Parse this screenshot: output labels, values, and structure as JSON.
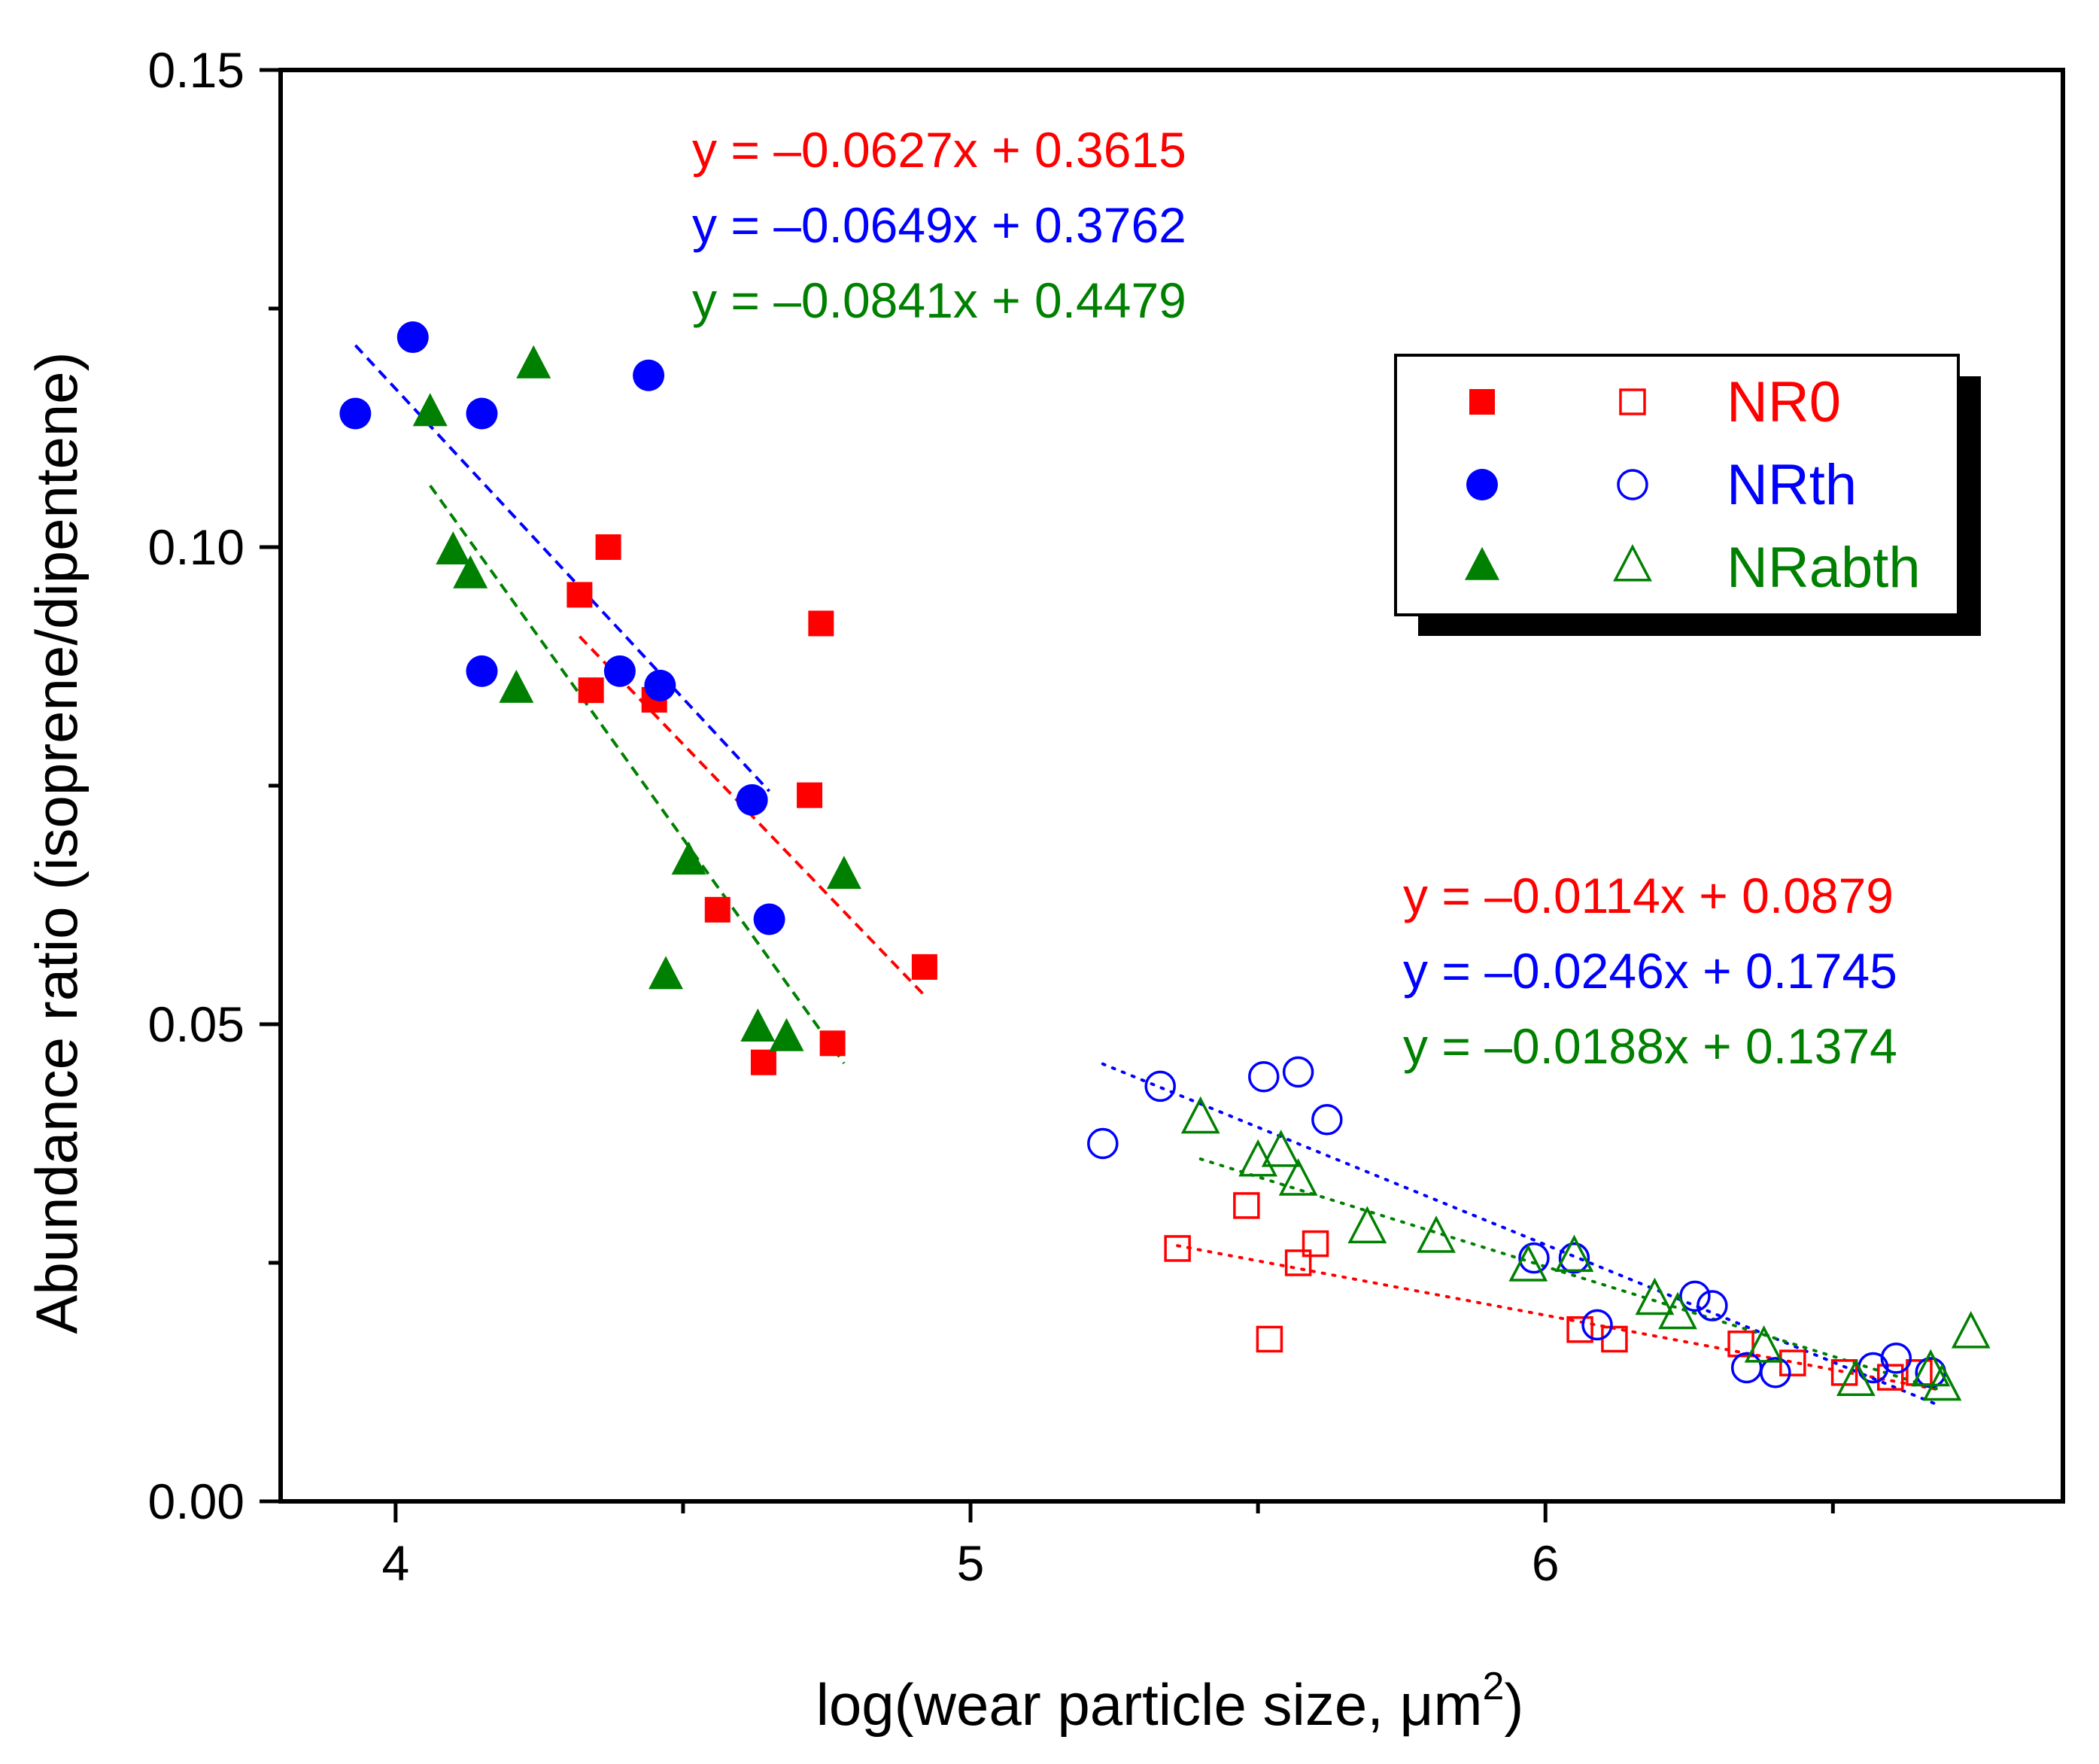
{
  "chart_data": {
    "type": "scatter",
    "xlabel": "log(wear particle size, μm",
    "xlabel_sup": "2",
    "xlabel_end": ")",
    "ylabel": "Abundance ratio (isoprene/dipentene)",
    "xlim": [
      3.8,
      6.9
    ],
    "ylim": [
      0.0,
      0.15
    ],
    "x_ticks": [
      4,
      5,
      6
    ],
    "x_tick_labels": [
      "4",
      "5",
      "6"
    ],
    "x_minor_ticks": [
      4.5,
      5.5,
      6.5
    ],
    "y_ticks": [
      0.0,
      0.05,
      0.1,
      0.15
    ],
    "y_tick_labels": [
      "0.00",
      "0.05",
      "0.10",
      "0.15"
    ],
    "y_minor_ticks": [
      0.025,
      0.075,
      0.125
    ],
    "colors": {
      "NR0": "#ff0000",
      "NRth": "#0000ff",
      "NRabth": "#008000"
    },
    "legend": {
      "position": "upper-right",
      "entries": [
        {
          "label": "NR0",
          "series": "NR0",
          "filled_marker": "square",
          "open_marker": "square"
        },
        {
          "label": "NRth",
          "series": "NRth",
          "filled_marker": "circle",
          "open_marker": "circle"
        },
        {
          "label": "NRabth",
          "series": "NRabth",
          "filled_marker": "triangle",
          "open_marker": "triangle"
        }
      ]
    },
    "equations_filled": [
      {
        "series": "NR0",
        "text": "y = –0.0627x + 0.3615"
      },
      {
        "series": "NRth",
        "text": "y = –0.0649x + 0.3762"
      },
      {
        "series": "NRabth",
        "text": "y = –0.0841x + 0.4479"
      }
    ],
    "equations_open": [
      {
        "series": "NR0",
        "text": "y = –0.0114x + 0.0879"
      },
      {
        "series": "NRth",
        "text": "y = –0.0246x + 0.1745"
      },
      {
        "series": "NRabth",
        "text": "y = –0.0188x + 0.1374"
      }
    ],
    "series": [
      {
        "name": "NR0",
        "marker": "square",
        "fill": "filled",
        "points": [
          [
            4.32,
            0.095
          ],
          [
            4.37,
            0.1
          ],
          [
            4.34,
            0.085
          ],
          [
            4.45,
            0.084
          ],
          [
            4.56,
            0.062
          ],
          [
            4.64,
            0.046
          ],
          [
            4.72,
            0.074
          ],
          [
            4.74,
            0.092
          ],
          [
            4.76,
            0.048
          ],
          [
            4.92,
            0.056
          ]
        ]
      },
      {
        "name": "NRth",
        "marker": "circle",
        "fill": "filled",
        "points": [
          [
            3.93,
            0.114
          ],
          [
            4.03,
            0.122
          ],
          [
            4.15,
            0.114
          ],
          [
            4.15,
            0.087
          ],
          [
            4.44,
            0.118
          ],
          [
            4.39,
            0.087
          ],
          [
            4.46,
            0.0855
          ],
          [
            4.62,
            0.0735
          ],
          [
            4.65,
            0.061
          ]
        ]
      },
      {
        "name": "NRabth",
        "marker": "triangle",
        "fill": "filled",
        "points": [
          [
            4.06,
            0.114
          ],
          [
            4.24,
            0.119
          ],
          [
            4.1,
            0.0995
          ],
          [
            4.13,
            0.097
          ],
          [
            4.21,
            0.085
          ],
          [
            4.51,
            0.067
          ],
          [
            4.47,
            0.055
          ],
          [
            4.63,
            0.0495
          ],
          [
            4.68,
            0.0485
          ],
          [
            4.78,
            0.0655
          ]
        ]
      },
      {
        "name": "NR0",
        "marker": "square",
        "fill": "open",
        "points": [
          [
            5.36,
            0.0265
          ],
          [
            5.48,
            0.031
          ],
          [
            5.52,
            0.017
          ],
          [
            5.57,
            0.025
          ],
          [
            5.6,
            0.027
          ],
          [
            6.06,
            0.018
          ],
          [
            6.12,
            0.017
          ],
          [
            6.34,
            0.0165
          ],
          [
            6.43,
            0.0145
          ],
          [
            6.52,
            0.0135
          ],
          [
            6.6,
            0.013
          ],
          [
            6.65,
            0.0135
          ]
        ]
      },
      {
        "name": "NRth",
        "marker": "circle",
        "fill": "open",
        "points": [
          [
            5.23,
            0.0375
          ],
          [
            5.33,
            0.0435
          ],
          [
            5.51,
            0.0445
          ],
          [
            5.57,
            0.045
          ],
          [
            5.62,
            0.04
          ],
          [
            5.98,
            0.0255
          ],
          [
            6.05,
            0.0255
          ],
          [
            6.09,
            0.0185
          ],
          [
            6.26,
            0.0215
          ],
          [
            6.29,
            0.0205
          ],
          [
            6.35,
            0.014
          ],
          [
            6.4,
            0.0135
          ],
          [
            6.57,
            0.014
          ],
          [
            6.61,
            0.015
          ],
          [
            6.67,
            0.0135
          ]
        ]
      },
      {
        "name": "NRabth",
        "marker": "triangle",
        "fill": "open",
        "points": [
          [
            5.4,
            0.04
          ],
          [
            5.5,
            0.0355
          ],
          [
            5.54,
            0.0365
          ],
          [
            5.57,
            0.0335
          ],
          [
            5.69,
            0.0285
          ],
          [
            5.81,
            0.0275
          ],
          [
            5.97,
            0.0245
          ],
          [
            6.05,
            0.0255
          ],
          [
            6.19,
            0.021
          ],
          [
            6.23,
            0.0195
          ],
          [
            6.38,
            0.016
          ],
          [
            6.54,
            0.0125
          ],
          [
            6.67,
            0.0135
          ],
          [
            6.69,
            0.012
          ],
          [
            6.74,
            0.0175
          ]
        ]
      }
    ],
    "fits": [
      {
        "series": "NR0",
        "style": "dashed",
        "slope": -0.0627,
        "intercept": 0.3615,
        "x_range": [
          4.32,
          4.92
        ]
      },
      {
        "series": "NRth",
        "style": "dashed",
        "slope": -0.0649,
        "intercept": 0.3762,
        "x_range": [
          3.93,
          4.65
        ]
      },
      {
        "series": "NRabth",
        "style": "dashed",
        "slope": -0.0841,
        "intercept": 0.4479,
        "x_range": [
          4.06,
          4.78
        ]
      },
      {
        "series": "NR0",
        "style": "dotted",
        "slope": -0.0114,
        "intercept": 0.0879,
        "x_range": [
          5.36,
          6.68
        ]
      },
      {
        "series": "NRth",
        "style": "dotted",
        "slope": -0.0246,
        "intercept": 0.1745,
        "x_range": [
          5.23,
          6.68
        ]
      },
      {
        "series": "NRabth",
        "style": "dotted",
        "slope": -0.0188,
        "intercept": 0.1374,
        "x_range": [
          5.4,
          6.68
        ]
      }
    ]
  }
}
